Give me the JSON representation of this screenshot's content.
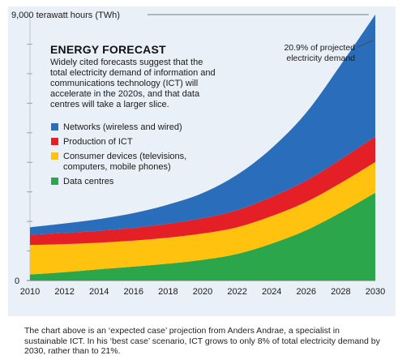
{
  "chart_data": {
    "type": "area",
    "stacked": true,
    "title": "ENERGY FORECAST",
    "subtitle_lines": [
      "Widely cited forecasts suggest that the",
      "total electricity demand of information and",
      "communications technology (ICT) will",
      "accelerate in the 2020s, and that data",
      "centres will take a larger slice."
    ],
    "y_max_label": "9,000 terawatt hours (TWh)",
    "y_zero_label": "0",
    "ylim": [
      0,
      9000
    ],
    "x": [
      2010,
      2012,
      2014,
      2016,
      2018,
      2020,
      2022,
      2024,
      2026,
      2028,
      2030
    ],
    "x_tick_labels": [
      "2010",
      "2012",
      "2014",
      "2016",
      "2018",
      "2020",
      "2022",
      "2024",
      "2026",
      "2028",
      "2030"
    ],
    "series": [
      {
        "name": "Data centres",
        "color": "#2ba64a",
        "values": [
          200,
          280,
          380,
          470,
          570,
          700,
          900,
          1250,
          1700,
          2300,
          2970
        ]
      },
      {
        "name": "Consumer devices (televisions, computers, mobile phones)",
        "color": "#ffc20e",
        "values": [
          1000,
          950,
          900,
          880,
          880,
          890,
          900,
          930,
          960,
          1000,
          1040
        ]
      },
      {
        "name": "Production of ICT",
        "color": "#e41f26",
        "values": [
          350,
          380,
          400,
          430,
          470,
          520,
          580,
          650,
          720,
          800,
          860
        ]
      },
      {
        "name": "Networks (wireless and wired)",
        "color": "#2a6ebb",
        "values": [
          250,
          320,
          400,
          500,
          650,
          850,
          1200,
          1650,
          2300,
          3200,
          4130
        ]
      }
    ],
    "legend_order": [
      {
        "name": "Networks (wireless and wired)",
        "color": "#2a6ebb",
        "lines": [
          "Networks (wireless and wired)"
        ]
      },
      {
        "name": "Production of ICT",
        "color": "#e41f26",
        "lines": [
          "Production of ICT"
        ]
      },
      {
        "name": "Consumer devices (televisions, computers, mobile phones)",
        "color": "#ffc20e",
        "lines": [
          "Consumer devices (televisions,",
          "computers, mobile phones)"
        ]
      },
      {
        "name": "Data centres",
        "color": "#2ba64a",
        "lines": [
          "Data centres"
        ]
      }
    ],
    "annotation_lines": [
      "20.9% of projected",
      "electricity demand"
    ],
    "legend_position": "top-left"
  },
  "footnote": "The chart above is an ‘expected case’ projection from Anders Andrae, a specialist in sustainable ICT. In his ‘best case’ scenario, ICT grows to only 8% of total electricity demand by 2030, rather than to 21%."
}
